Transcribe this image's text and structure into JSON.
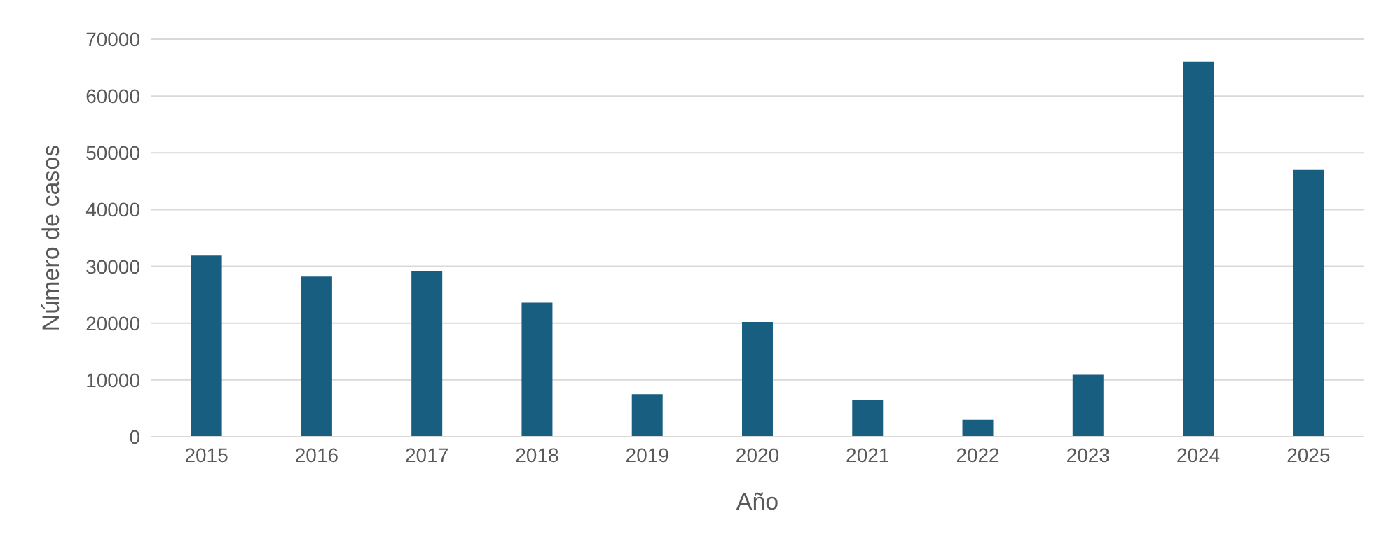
{
  "chart_data": {
    "type": "bar",
    "xlabel": "Año",
    "ylabel": "Número de casos",
    "categories": [
      "2015",
      "2016",
      "2017",
      "2018",
      "2019",
      "2020",
      "2021",
      "2022",
      "2023",
      "2024",
      "2025"
    ],
    "values": [
      31900,
      28200,
      29200,
      23600,
      7500,
      20200,
      6400,
      3000,
      10900,
      66100,
      47000
    ],
    "color": "#175e80",
    "ylim": [
      0,
      70000
    ],
    "yticks": [
      0,
      10000,
      20000,
      30000,
      40000,
      50000,
      60000,
      70000
    ],
    "grid": "y"
  }
}
